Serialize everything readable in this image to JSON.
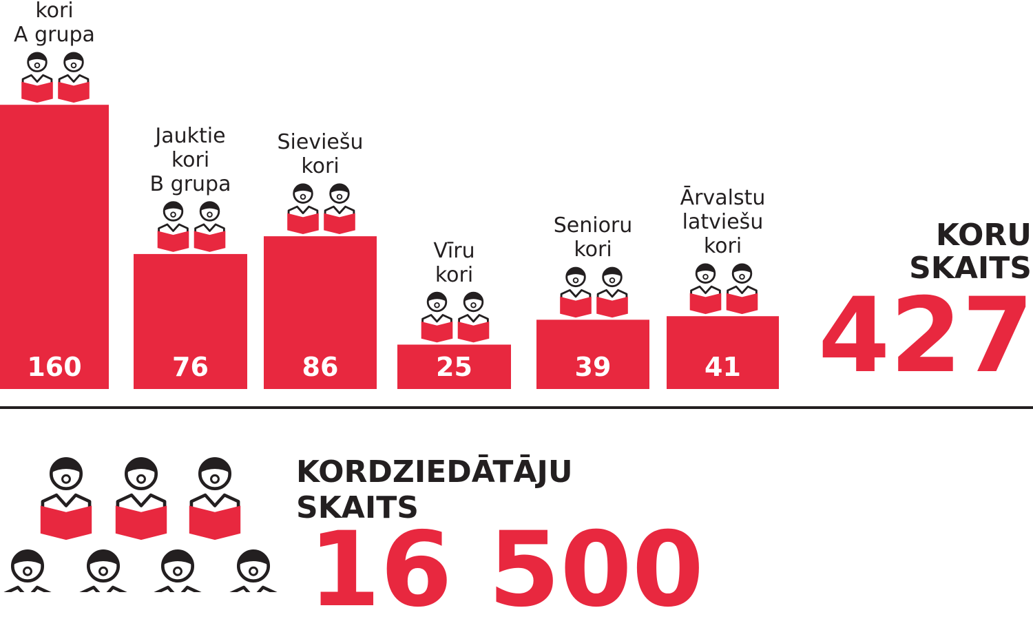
{
  "colors": {
    "accent": "#e8283f",
    "text": "#231f20",
    "background": "#ffffff"
  },
  "chart_data": {
    "type": "bar",
    "categories": [
      [
        "kori",
        "A grupa"
      ],
      [
        "Jauktie",
        "kori",
        "B grupa"
      ],
      [
        "Sieviešu",
        "kori"
      ],
      [
        "Vīru",
        "kori"
      ],
      [
        "Senioru",
        "kori"
      ],
      [
        "Ārvalstu",
        "latviešu",
        "kori"
      ]
    ],
    "values": [
      160,
      76,
      86,
      25,
      39,
      41
    ],
    "value_labels": [
      "160",
      "76",
      "86",
      "25",
      "39",
      "41"
    ],
    "icons": [
      "singer-icon",
      "singer-icon",
      "singer-icon",
      "singer-icon",
      "singer-icon",
      "singer-icon"
    ]
  },
  "choirs_total": {
    "heading_line1": "KORU",
    "heading_line2": "SKAITS",
    "value": "427"
  },
  "singers_total": {
    "heading_line1": "KORDZIEDĀTĀJU",
    "heading_line2": "SKAITS",
    "value": "16 500"
  }
}
